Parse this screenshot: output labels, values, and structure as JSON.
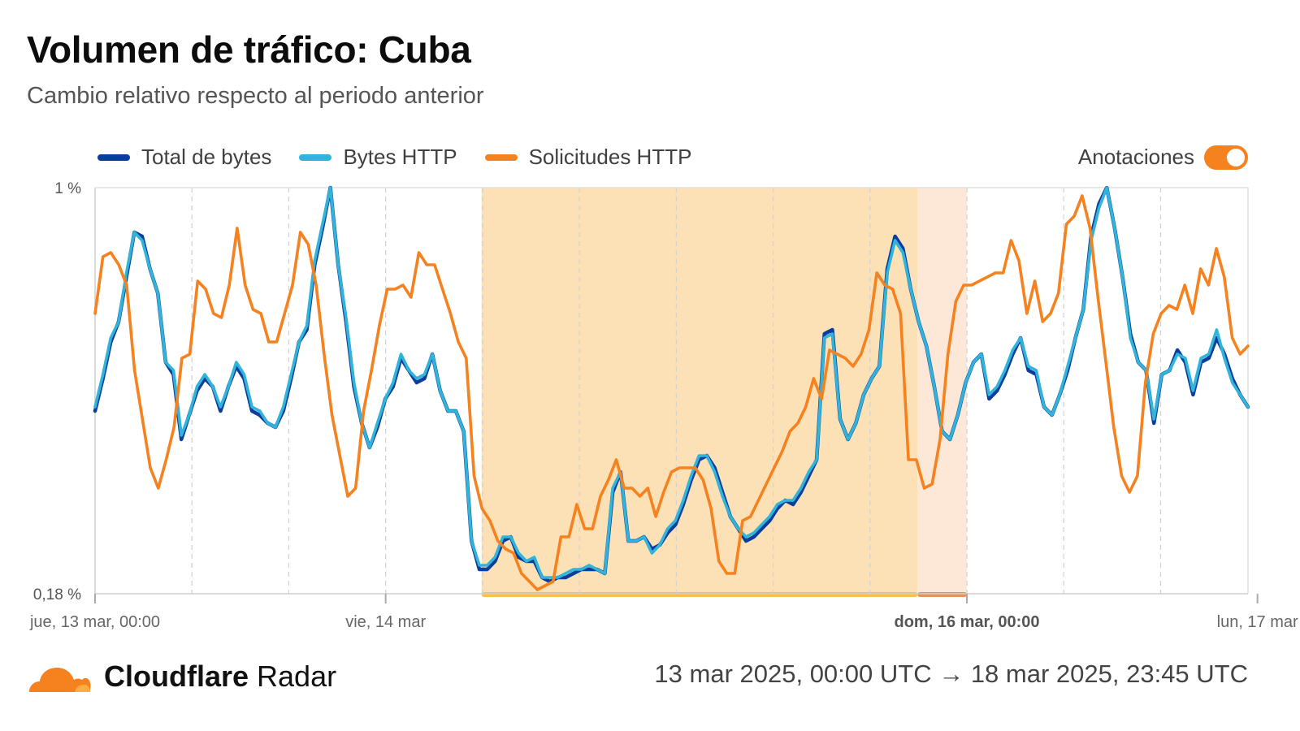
{
  "header": {
    "title": "Volumen de tráfico: Cuba",
    "subtitle": "Cambio relativo respecto al periodo anterior"
  },
  "legend": [
    {
      "label": "Total de bytes",
      "color": "#0a3d9c"
    },
    {
      "label": "Bytes HTTP",
      "color": "#31b4d9"
    },
    {
      "label": "Solicitudes HTTP",
      "color": "#f6821f"
    }
  ],
  "annotations_toggle": {
    "label": "Anotaciones",
    "on": true,
    "color": "#f6821f"
  },
  "footer": {
    "brand_bold": "Cloudflare",
    "brand_light": "Radar",
    "range": "13 mar 2025, 00:00 UTC → 18 mar 2025, 23:45 UTC"
  },
  "chart_data": {
    "type": "line",
    "y_axis": {
      "top_label": "1 %",
      "bottom_label": "0,18 %"
    },
    "x_ticks": [
      {
        "label": "jue, 13 mar, 00:00",
        "day": 0,
        "bold": false
      },
      {
        "label": "vie, 14 mar",
        "day": 1,
        "bold": false
      },
      {
        "label": "dom, 16 mar, 00:00",
        "day": 3,
        "bold": true
      },
      {
        "label": "lun, 17 mar",
        "day": 4,
        "bold": false
      }
    ],
    "x_range_days": [
      0,
      3.97
    ],
    "grid": "vertical dashed every 8 hours",
    "annotations": [
      {
        "start_day": 1.33,
        "end_day": 2.83,
        "color": "#fde1b6",
        "bar_color": "#fbbf4a"
      },
      {
        "start_day": 2.83,
        "end_day": 3.0,
        "color": "#fde8d8",
        "bar_color": "#e8935a"
      }
    ],
    "series": [
      {
        "name": "Total de bytes",
        "color": "#0a3d9c",
        "y_norm": [
          0.45,
          0.53,
          0.62,
          0.67,
          0.78,
          0.89,
          0.88,
          0.8,
          0.74,
          0.57,
          0.54,
          0.38,
          0.44,
          0.5,
          0.53,
          0.51,
          0.45,
          0.51,
          0.56,
          0.53,
          0.45,
          0.44,
          0.42,
          0.41,
          0.45,
          0.53,
          0.62,
          0.65,
          0.81,
          0.9,
          1.0,
          0.81,
          0.67,
          0.51,
          0.42,
          0.36,
          0.41,
          0.48,
          0.51,
          0.58,
          0.55,
          0.52,
          0.53,
          0.59,
          0.5,
          0.45,
          0.45,
          0.4,
          0.13,
          0.06,
          0.06,
          0.08,
          0.13,
          0.14,
          0.09,
          0.08,
          0.08,
          0.04,
          0.03,
          0.04,
          0.04,
          0.05,
          0.06,
          0.06,
          0.06,
          0.05,
          0.25,
          0.3,
          0.13,
          0.13,
          0.14,
          0.11,
          0.12,
          0.15,
          0.17,
          0.22,
          0.28,
          0.33,
          0.34,
          0.31,
          0.25,
          0.19,
          0.16,
          0.13,
          0.14,
          0.16,
          0.18,
          0.21,
          0.23,
          0.22,
          0.25,
          0.29,
          0.33,
          0.64,
          0.65,
          0.43,
          0.38,
          0.42,
          0.49,
          0.53,
          0.56,
          0.8,
          0.88,
          0.85,
          0.75,
          0.67,
          0.61,
          0.51,
          0.4,
          0.38,
          0.44,
          0.52,
          0.57,
          0.59,
          0.48,
          0.5,
          0.54,
          0.59,
          0.63,
          0.55,
          0.54,
          0.46,
          0.44,
          0.49,
          0.55,
          0.63,
          0.7,
          0.88,
          0.96,
          1.0,
          0.9,
          0.78,
          0.64,
          0.57,
          0.55,
          0.42,
          0.54,
          0.55,
          0.6,
          0.57,
          0.49,
          0.57,
          0.58,
          0.63,
          0.59,
          0.53,
          0.49,
          0.46
        ]
      },
      {
        "name": "Bytes HTTP",
        "color": "#31b4d9",
        "y_norm": [
          0.46,
          0.54,
          0.63,
          0.67,
          0.79,
          0.89,
          0.87,
          0.8,
          0.74,
          0.57,
          0.55,
          0.39,
          0.44,
          0.51,
          0.54,
          0.51,
          0.46,
          0.51,
          0.57,
          0.54,
          0.46,
          0.45,
          0.42,
          0.41,
          0.46,
          0.54,
          0.62,
          0.66,
          0.82,
          0.91,
          1.0,
          0.81,
          0.68,
          0.52,
          0.42,
          0.36,
          0.42,
          0.48,
          0.52,
          0.59,
          0.55,
          0.53,
          0.54,
          0.59,
          0.5,
          0.45,
          0.45,
          0.4,
          0.13,
          0.07,
          0.07,
          0.09,
          0.14,
          0.14,
          0.1,
          0.08,
          0.09,
          0.04,
          0.04,
          0.04,
          0.05,
          0.06,
          0.06,
          0.07,
          0.06,
          0.05,
          0.26,
          0.3,
          0.13,
          0.13,
          0.14,
          0.1,
          0.12,
          0.16,
          0.18,
          0.23,
          0.29,
          0.34,
          0.34,
          0.3,
          0.24,
          0.19,
          0.16,
          0.14,
          0.15,
          0.17,
          0.19,
          0.22,
          0.23,
          0.23,
          0.26,
          0.3,
          0.33,
          0.63,
          0.64,
          0.43,
          0.38,
          0.42,
          0.49,
          0.53,
          0.56,
          0.79,
          0.87,
          0.84,
          0.75,
          0.67,
          0.61,
          0.51,
          0.4,
          0.38,
          0.44,
          0.52,
          0.57,
          0.59,
          0.49,
          0.51,
          0.55,
          0.6,
          0.63,
          0.56,
          0.55,
          0.46,
          0.44,
          0.49,
          0.56,
          0.63,
          0.7,
          0.87,
          0.95,
          1.0,
          0.9,
          0.78,
          0.63,
          0.57,
          0.55,
          0.43,
          0.54,
          0.55,
          0.59,
          0.58,
          0.5,
          0.58,
          0.59,
          0.65,
          0.58,
          0.52,
          0.49,
          0.46
        ]
      },
      {
        "name": "Solicitudes HTTP",
        "color": "#f6821f",
        "y_norm": [
          0.69,
          0.83,
          0.84,
          0.81,
          0.76,
          0.55,
          0.43,
          0.31,
          0.26,
          0.33,
          0.41,
          0.58,
          0.59,
          0.77,
          0.75,
          0.69,
          0.68,
          0.76,
          0.9,
          0.76,
          0.7,
          0.69,
          0.62,
          0.62,
          0.69,
          0.76,
          0.89,
          0.86,
          0.76,
          0.59,
          0.44,
          0.34,
          0.24,
          0.26,
          0.45,
          0.55,
          0.66,
          0.75,
          0.75,
          0.76,
          0.73,
          0.84,
          0.81,
          0.81,
          0.75,
          0.69,
          0.62,
          0.58,
          0.29,
          0.21,
          0.18,
          0.13,
          0.11,
          0.1,
          0.05,
          0.03,
          0.01,
          0.02,
          0.03,
          0.14,
          0.14,
          0.22,
          0.16,
          0.16,
          0.24,
          0.28,
          0.33,
          0.26,
          0.26,
          0.24,
          0.26,
          0.19,
          0.25,
          0.3,
          0.31,
          0.31,
          0.31,
          0.28,
          0.21,
          0.08,
          0.05,
          0.05,
          0.18,
          0.19,
          0.23,
          0.27,
          0.31,
          0.35,
          0.4,
          0.42,
          0.46,
          0.53,
          0.48,
          0.6,
          0.59,
          0.58,
          0.56,
          0.59,
          0.65,
          0.79,
          0.76,
          0.75,
          0.69,
          0.33,
          0.33,
          0.26,
          0.27,
          0.38,
          0.59,
          0.72,
          0.76,
          0.76,
          0.77,
          0.78,
          0.79,
          0.79,
          0.87,
          0.82,
          0.69,
          0.77,
          0.67,
          0.69,
          0.74,
          0.91,
          0.93,
          0.98,
          0.9,
          0.73,
          0.57,
          0.41,
          0.29,
          0.25,
          0.29,
          0.52,
          0.64,
          0.69,
          0.71,
          0.7,
          0.76,
          0.69,
          0.8,
          0.76,
          0.85,
          0.78,
          0.63,
          0.59,
          0.61
        ]
      }
    ]
  }
}
